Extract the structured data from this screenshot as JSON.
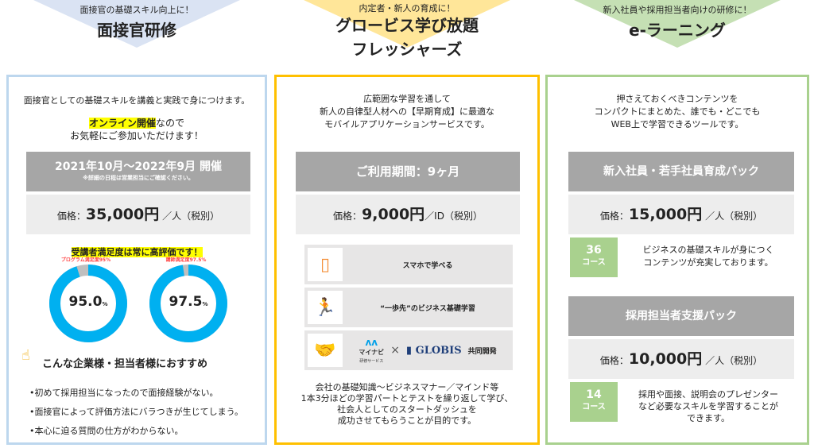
{
  "col1": {
    "tagline": "面接官の基礎スキル向上に！",
    "title": "面接官研修",
    "intro": "面接官としての基礎スキルを講義と実践で身につけます。",
    "online_hl": "オンライン開催",
    "online_rest": "なので",
    "online_line2": "お気軽にご参加いただけます！",
    "period": "2021年10月～2022年9月 開催",
    "period_note": "※詳細の日程は営業担当にご確認ください。",
    "price_label": "価格：",
    "price": "35,000円",
    "price_unit": "／人（税別）",
    "satisfaction": "受講者満足度は常に高評価です！",
    "donuts": [
      {
        "label": "プログラム満足度95%",
        "value": "95.0",
        "pct": 95,
        "unit": "%"
      },
      {
        "label": "講師満足度97.5%",
        "value": "97.5",
        "pct": 97.5,
        "unit": "%"
      }
    ],
    "recommend": "こんな企業様・担当者様におすすめ",
    "bullets": [
      "•初めて採用担当になったので面接経験がない。",
      "•面接官によって評価方法にバラつきが生じてしまう。",
      "•本心に迫る質問の仕方がわからない。"
    ]
  },
  "col2": {
    "tagline": "内定者・新人の育成に！",
    "title1": "グロービス学び放題",
    "title2": "フレッシャーズ",
    "intro": [
      "広範囲な学習を通して",
      "新人の自律型人材への【早期育成】に最適な",
      "モバイルアプリケーションサービスです。"
    ],
    "period": "ご利用期間：9ヶ月",
    "price_label": "価格：",
    "price": "9,000円",
    "price_unit": "／ID（税別）",
    "features": [
      "スマホで学べる",
      "“一歩先”のビジネス基礎学習",
      "共同開発"
    ],
    "logo1": "マイナビ",
    "logo1_sub": "研修サービス",
    "times": "×",
    "logo2": "GLOBIS",
    "desc": [
      "会社の基礎知識～ビジネスマナー／マインド等",
      "1本3分ほどの学習パートとテストを繰り返して学び、",
      "社会人としてのスタートダッシュを",
      "成功させてもらうことが目的です。"
    ]
  },
  "col3": {
    "tagline": "新入社員や採用担当者向けの研修に！",
    "title": "e-ラーニング",
    "intro": [
      "押さえておくべきコンテンツを",
      "コンパクトにまとめた、誰でも・どこでも",
      "WEB上で学習できるツールです。"
    ],
    "pack1": {
      "name": "新入社員・若手社員育成パック",
      "price_label": "価格：",
      "price": "15,000円",
      "price_unit": "／人（税別）",
      "count": "36",
      "unit": "コース",
      "desc": [
        "ビジネスの基礎スキルが身につく",
        "コンテンツが充実しております。"
      ]
    },
    "pack2": {
      "name": "採用担当者支援パック",
      "price_label": "価格：",
      "price": "10,000円",
      "price_unit": "／人（税別）",
      "count": "14",
      "unit": "コース",
      "desc": [
        "採用や面接、説明会のプレゼンター",
        "など必要なスキルを学習することが",
        "できます。"
      ]
    }
  },
  "colors": {
    "blue": "#bdd7ee",
    "yellow": "#ffc000",
    "green": "#a9d18e",
    "donut": "#00b0f0"
  }
}
